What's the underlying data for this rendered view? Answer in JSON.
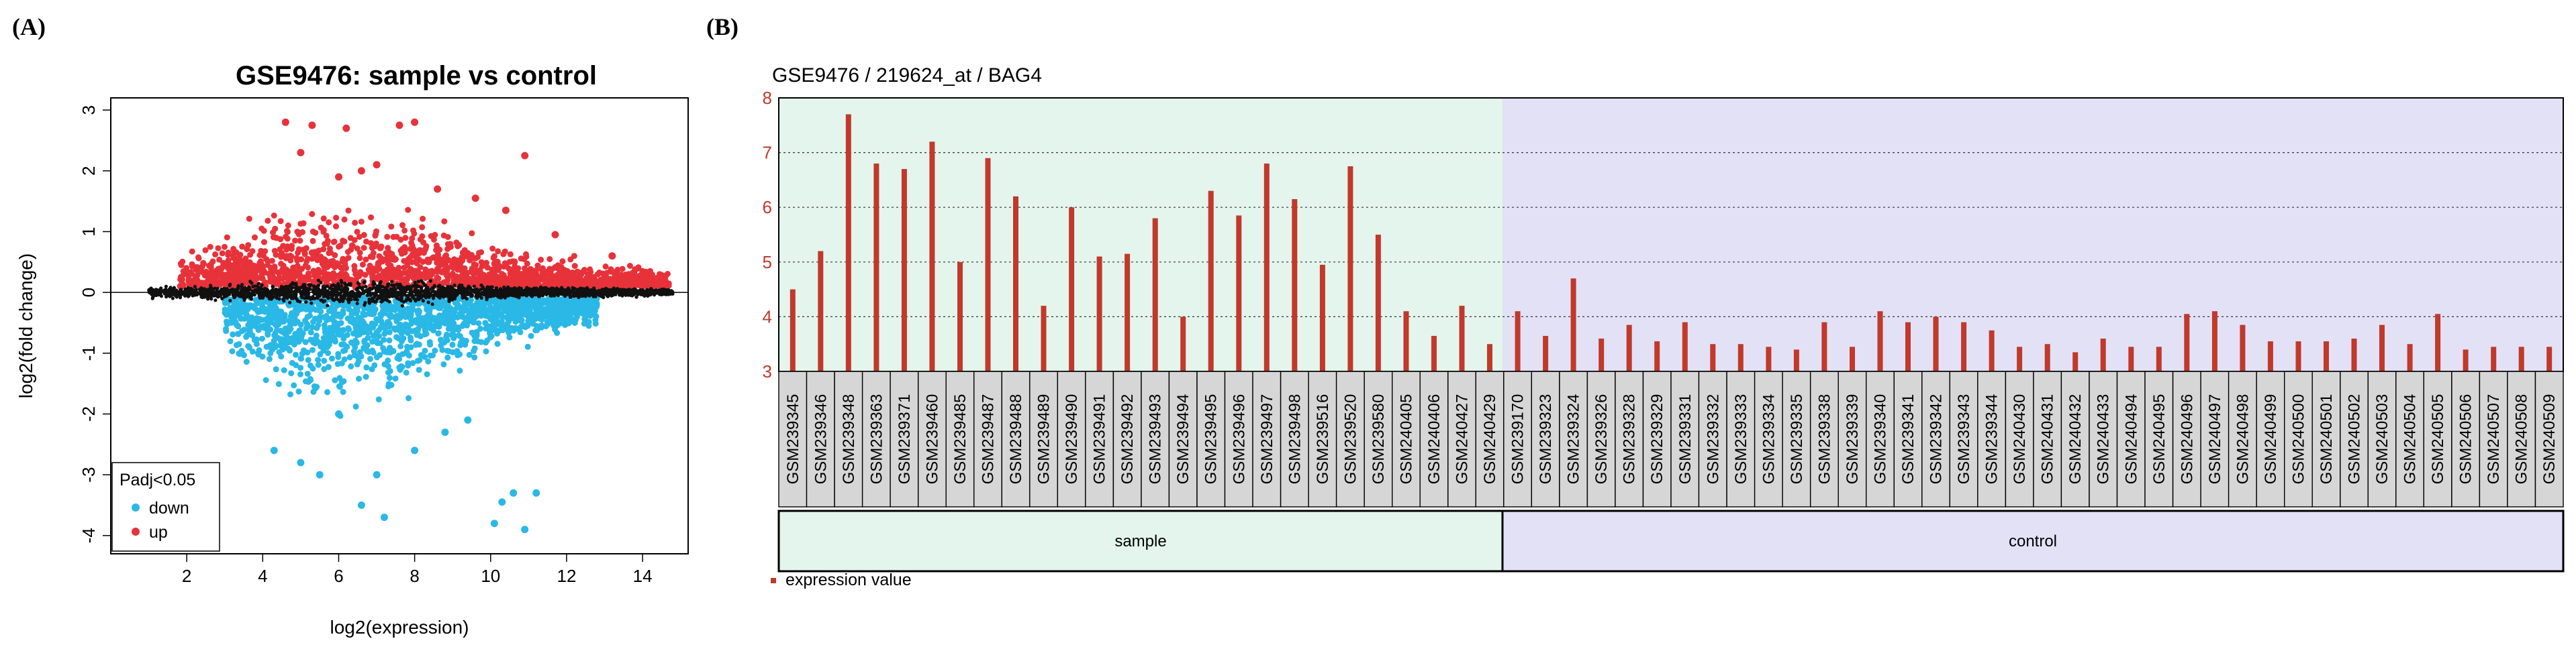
{
  "panel_a": {
    "label": "(A)",
    "legend_title": "Padj<0.05",
    "legend_down": "down",
    "legend_up": "up"
  },
  "panel_b": {
    "label": "(B)",
    "group_sample": "sample",
    "group_control": "control",
    "legend": "expression value"
  },
  "colors": {
    "up": "#e8323a",
    "down": "#2ab8e6",
    "ns": "#111111",
    "bar": "#c0392b",
    "sample_bg": "#e3f5ec",
    "control_bg": "#e3e1f6"
  },
  "chart_data": [
    {
      "type": "scatter",
      "title": "GSE9476: sample vs control",
      "xlabel": "log2(expression)",
      "ylabel": "log2(fold change)",
      "xlim": [
        0,
        15.2
      ],
      "ylim": [
        -4.3,
        3.2
      ],
      "xticks": [
        2,
        4,
        6,
        8,
        10,
        12,
        14
      ],
      "yticks": [
        -4,
        -3,
        -2,
        -1,
        0,
        1,
        2,
        3
      ],
      "reference_line": 0,
      "legend": {
        "title": "Padj<0.05",
        "entries": [
          "down",
          "up"
        ],
        "position": "bottom-left"
      },
      "series": [
        {
          "name": "up",
          "note": "significant up-regulated genes, dense cloud around x 2.5-14, y 0.1-1.2; highlighted outliers listed",
          "points": [
            [
              4.6,
              2.8
            ],
            [
              5.3,
              2.75
            ],
            [
              6.2,
              2.7
            ],
            [
              7.6,
              2.75
            ],
            [
              8.0,
              2.8
            ],
            [
              10.9,
              2.25
            ],
            [
              6.6,
              2.0
            ],
            [
              5.0,
              2.3
            ],
            [
              7.0,
              2.1
            ],
            [
              6.0,
              1.9
            ],
            [
              8.6,
              1.7
            ],
            [
              9.6,
              1.55
            ],
            [
              10.4,
              1.35
            ],
            [
              11.7,
              0.95
            ],
            [
              13.2,
              0.6
            ]
          ]
        },
        {
          "name": "down",
          "note": "significant down-regulated genes, dense cloud around x 3-12.5, y -0.1 to -1.5; highlighted outliers listed",
          "points": [
            [
              10.3,
              -3.45
            ],
            [
              10.6,
              -3.3
            ],
            [
              11.2,
              -3.3
            ],
            [
              10.1,
              -3.8
            ],
            [
              10.9,
              -3.9
            ],
            [
              7.2,
              -3.7
            ],
            [
              6.6,
              -3.5
            ],
            [
              5.5,
              -3.0
            ],
            [
              7.0,
              -3.0
            ],
            [
              4.3,
              -2.6
            ],
            [
              5.0,
              -2.8
            ],
            [
              8.0,
              -2.6
            ],
            [
              8.8,
              -2.3
            ],
            [
              9.4,
              -2.1
            ],
            [
              6.0,
              -2.0
            ]
          ]
        },
        {
          "name": "not significant",
          "note": "black points along y=0 from x about 1 to 14.8"
        }
      ]
    },
    {
      "type": "bar",
      "title": "GSE9476 / 219624_at / BAG4",
      "ylabel": "",
      "ylim": [
        3,
        8
      ],
      "yticks": [
        3,
        4,
        5,
        6,
        7,
        8
      ],
      "legend": {
        "entries": [
          "expression value"
        ],
        "position": "bottom-left"
      },
      "groups": [
        {
          "name": "sample",
          "start": 0,
          "count": 26
        },
        {
          "name": "control",
          "start": 26,
          "count": 38
        }
      ],
      "categories": [
        "GSM239345",
        "GSM239346",
        "GSM239348",
        "GSM239363",
        "GSM239371",
        "GSM239460",
        "GSM239485",
        "GSM239487",
        "GSM239488",
        "GSM239489",
        "GSM239490",
        "GSM239491",
        "GSM239492",
        "GSM239493",
        "GSM239494",
        "GSM239495",
        "GSM239496",
        "GSM239497",
        "GSM239498",
        "GSM239516",
        "GSM239520",
        "GSM239580",
        "GSM240405",
        "GSM240406",
        "GSM240427",
        "GSM240429",
        "GSM239170",
        "GSM239323",
        "GSM239324",
        "GSM239326",
        "GSM239328",
        "GSM239329",
        "GSM239331",
        "GSM239332",
        "GSM239333",
        "GSM239334",
        "GSM239335",
        "GSM239338",
        "GSM239339",
        "GSM239340",
        "GSM239341",
        "GSM239342",
        "GSM239343",
        "GSM239344",
        "GSM240430",
        "GSM240431",
        "GSM240432",
        "GSM240433",
        "GSM240494",
        "GSM240495",
        "GSM240496",
        "GSM240497",
        "GSM240498",
        "GSM240499",
        "GSM240500",
        "GSM240501",
        "GSM240502",
        "GSM240503",
        "GSM240504",
        "GSM240505",
        "GSM240506",
        "GSM240507",
        "GSM240508",
        "GSM240509"
      ],
      "values": [
        4.5,
        5.2,
        7.7,
        6.8,
        6.7,
        7.2,
        5.0,
        6.9,
        6.2,
        4.2,
        6.0,
        5.1,
        5.15,
        5.8,
        4.0,
        6.3,
        5.85,
        6.8,
        6.15,
        4.95,
        6.75,
        5.5,
        4.1,
        3.65,
        4.2,
        3.5,
        4.1,
        3.65,
        4.7,
        3.6,
        3.85,
        3.55,
        3.9,
        3.5,
        3.5,
        3.45,
        3.4,
        3.9,
        3.45,
        4.1,
        3.9,
        4.0,
        3.9,
        3.75,
        3.45,
        3.5,
        3.35,
        3.6,
        3.45,
        3.45,
        4.05,
        4.1,
        3.85,
        3.55,
        3.55,
        3.55,
        3.6,
        3.85,
        3.5,
        4.05,
        3.4,
        3.45,
        3.45,
        3.45
      ]
    }
  ]
}
